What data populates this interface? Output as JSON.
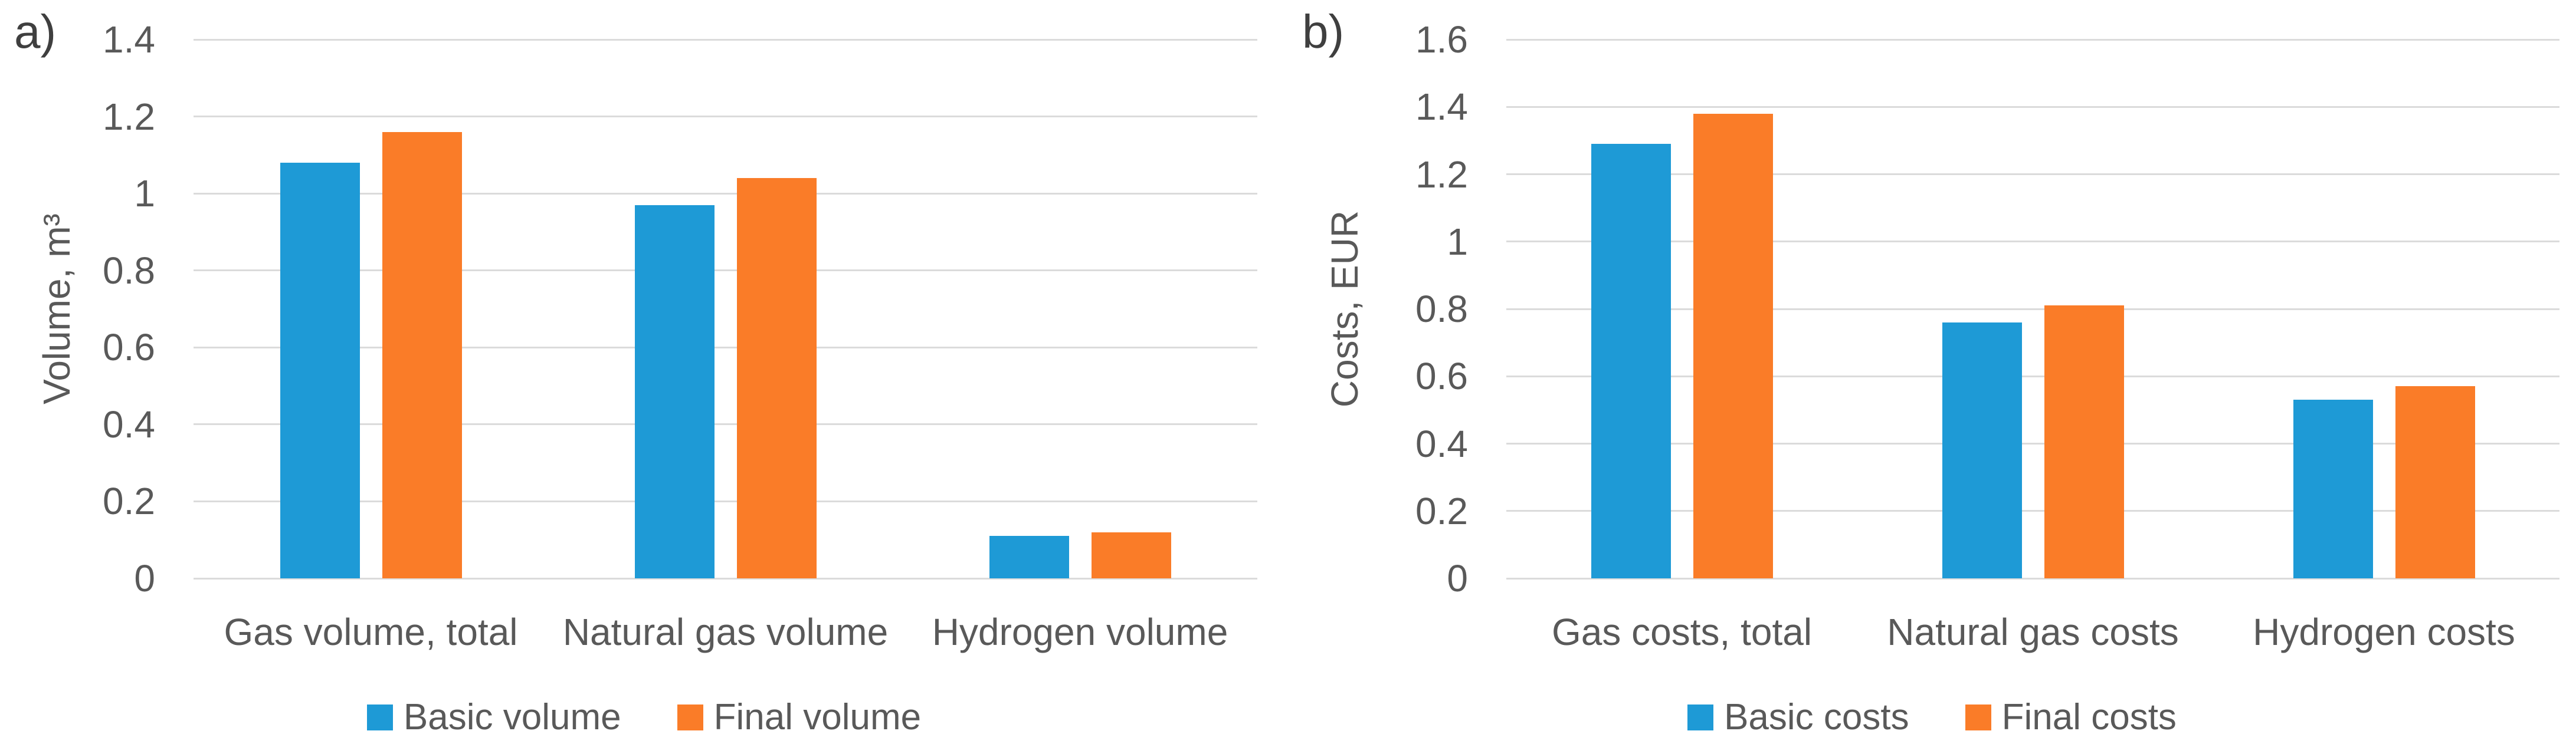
{
  "styles": {
    "background": "#ffffff",
    "text_color": "#595959",
    "panel_label_color": "#3f3f3f",
    "gridline_color": "#dbdbdb",
    "series_blue": "#1e9ad6",
    "series_orange": "#fa7c28"
  },
  "chart_data": [
    {
      "type": "bar",
      "panel_label": "a)",
      "title": "",
      "ylabel": "Volume, m³",
      "xlabel": "",
      "ylim": [
        0,
        1.4
      ],
      "ytick_step": 0.2,
      "grid": true,
      "legend_position": "bottom",
      "categories": [
        "Gas volume, total",
        "Natural gas volume",
        "Hydrogen volume"
      ],
      "series": [
        {
          "name": "Basic volume",
          "color": "#1e9ad6",
          "values": [
            1.08,
            0.97,
            0.11
          ]
        },
        {
          "name": "Final volume",
          "color": "#fa7c28",
          "values": [
            1.16,
            1.04,
            0.12
          ]
        }
      ]
    },
    {
      "type": "bar",
      "panel_label": "b)",
      "title": "",
      "ylabel": "Costs, EUR",
      "xlabel": "",
      "ylim": [
        0,
        1.6
      ],
      "ytick_step": 0.2,
      "grid": true,
      "legend_position": "bottom",
      "categories": [
        "Gas costs, total",
        "Natural gas costs",
        "Hydrogen costs"
      ],
      "series": [
        {
          "name": "Basic costs",
          "color": "#1e9ad6",
          "values": [
            1.29,
            0.76,
            0.53
          ]
        },
        {
          "name": "Final costs",
          "color": "#fa7c28",
          "values": [
            1.38,
            0.81,
            0.57
          ]
        }
      ]
    }
  ]
}
